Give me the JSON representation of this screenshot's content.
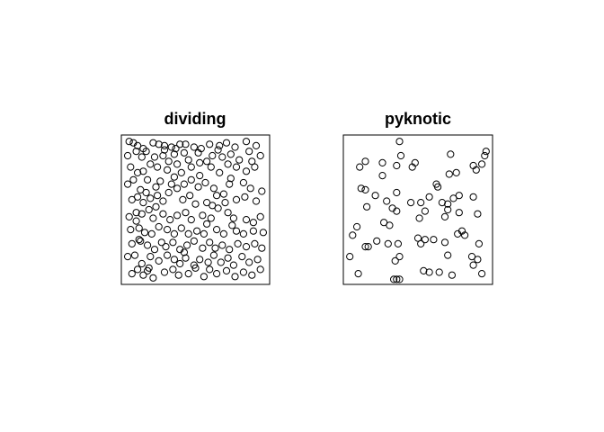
{
  "chart_data": [
    {
      "type": "scatter",
      "title": "dividing",
      "axes": "none",
      "window": [
        [
          0,
          1
        ],
        [
          0,
          1
        ]
      ],
      "marker": "open-circle",
      "points": [
        [
          0.03,
          0.98
        ],
        [
          0.06,
          0.97
        ],
        [
          0.09,
          0.95
        ],
        [
          0.13,
          0.93
        ],
        [
          0.2,
          0.97
        ],
        [
          0.24,
          0.96
        ],
        [
          0.28,
          0.95
        ],
        [
          0.33,
          0.94
        ],
        [
          0.36,
          0.93
        ],
        [
          0.39,
          0.96
        ],
        [
          0.43,
          0.96
        ],
        [
          0.49,
          0.94
        ],
        [
          0.54,
          0.93
        ],
        [
          0.6,
          0.96
        ],
        [
          0.66,
          0.92
        ],
        [
          0.72,
          0.97
        ],
        [
          0.78,
          0.94
        ],
        [
          0.86,
          0.98
        ],
        [
          0.93,
          0.95
        ],
        [
          0.02,
          0.88
        ],
        [
          0.08,
          0.91
        ],
        [
          0.12,
          0.87
        ],
        [
          0.15,
          0.91
        ],
        [
          0.18,
          0.82
        ],
        [
          0.21,
          0.87
        ],
        [
          0.27,
          0.88
        ],
        [
          0.31,
          0.84
        ],
        [
          0.35,
          0.89
        ],
        [
          0.42,
          0.9
        ],
        [
          0.45,
          0.85
        ],
        [
          0.52,
          0.9
        ],
        [
          0.58,
          0.84
        ],
        [
          0.62,
          0.88
        ],
        [
          0.69,
          0.87
        ],
        [
          0.75,
          0.89
        ],
        [
          0.81,
          0.85
        ],
        [
          0.9,
          0.84
        ],
        [
          0.96,
          0.88
        ],
        [
          0.04,
          0.8
        ],
        [
          0.09,
          0.76
        ],
        [
          0.13,
          0.77
        ],
        [
          0.23,
          0.8
        ],
        [
          0.3,
          0.78
        ],
        [
          0.37,
          0.82
        ],
        [
          0.4,
          0.76
        ],
        [
          0.47,
          0.8
        ],
        [
          0.53,
          0.74
        ],
        [
          0.61,
          0.8
        ],
        [
          0.67,
          0.76
        ],
        [
          0.73,
          0.82
        ],
        [
          0.79,
          0.8
        ],
        [
          0.86,
          0.77
        ],
        [
          0.92,
          0.8
        ],
        [
          0.02,
          0.68
        ],
        [
          0.06,
          0.71
        ],
        [
          0.11,
          0.64
        ],
        [
          0.16,
          0.71
        ],
        [
          0.22,
          0.66
        ],
        [
          0.25,
          0.7
        ],
        [
          0.33,
          0.68
        ],
        [
          0.37,
          0.65
        ],
        [
          0.42,
          0.68
        ],
        [
          0.47,
          0.71
        ],
        [
          0.52,
          0.66
        ],
        [
          0.57,
          0.69
        ],
        [
          0.63,
          0.65
        ],
        [
          0.7,
          0.61
        ],
        [
          0.74,
          0.68
        ],
        [
          0.84,
          0.69
        ],
        [
          0.89,
          0.65
        ],
        [
          0.97,
          0.63
        ],
        [
          0.05,
          0.57
        ],
        [
          0.09,
          0.59
        ],
        [
          0.13,
          0.55
        ],
        [
          0.18,
          0.58
        ],
        [
          0.23,
          0.6
        ],
        [
          0.27,
          0.56
        ],
        [
          0.31,
          0.62
        ],
        [
          0.41,
          0.57
        ],
        [
          0.46,
          0.6
        ],
        [
          0.5,
          0.54
        ],
        [
          0.58,
          0.55
        ],
        [
          0.65,
          0.6
        ],
        [
          0.71,
          0.55
        ],
        [
          0.79,
          0.57
        ],
        [
          0.85,
          0.59
        ],
        [
          0.93,
          0.56
        ],
        [
          0.03,
          0.45
        ],
        [
          0.08,
          0.48
        ],
        [
          0.12,
          0.47
        ],
        [
          0.17,
          0.5
        ],
        [
          0.2,
          0.44
        ],
        [
          0.27,
          0.47
        ],
        [
          0.32,
          0.43
        ],
        [
          0.37,
          0.46
        ],
        [
          0.43,
          0.48
        ],
        [
          0.47,
          0.43
        ],
        [
          0.55,
          0.46
        ],
        [
          0.61,
          0.44
        ],
        [
          0.66,
          0.51
        ],
        [
          0.73,
          0.48
        ],
        [
          0.77,
          0.44
        ],
        [
          0.86,
          0.43
        ],
        [
          0.91,
          0.41
        ],
        [
          0.96,
          0.45
        ],
        [
          0.04,
          0.36
        ],
        [
          0.1,
          0.37
        ],
        [
          0.14,
          0.34
        ],
        [
          0.19,
          0.33
        ],
        [
          0.24,
          0.38
        ],
        [
          0.3,
          0.36
        ],
        [
          0.35,
          0.33
        ],
        [
          0.4,
          0.37
        ],
        [
          0.45,
          0.33
        ],
        [
          0.51,
          0.35
        ],
        [
          0.56,
          0.33
        ],
        [
          0.65,
          0.36
        ],
        [
          0.7,
          0.33
        ],
        [
          0.79,
          0.35
        ],
        [
          0.84,
          0.33
        ],
        [
          0.91,
          0.35
        ],
        [
          0.98,
          0.34
        ],
        [
          0.05,
          0.26
        ],
        [
          0.1,
          0.29
        ],
        [
          0.16,
          0.25
        ],
        [
          0.21,
          0.22
        ],
        [
          0.26,
          0.27
        ],
        [
          0.29,
          0.24
        ],
        [
          0.34,
          0.27
        ],
        [
          0.39,
          0.22
        ],
        [
          0.44,
          0.25
        ],
        [
          0.49,
          0.28
        ],
        [
          0.55,
          0.23
        ],
        [
          0.6,
          0.27
        ],
        [
          0.64,
          0.23
        ],
        [
          0.69,
          0.25
        ],
        [
          0.74,
          0.22
        ],
        [
          0.8,
          0.26
        ],
        [
          0.86,
          0.24
        ],
        [
          0.92,
          0.26
        ],
        [
          0.97,
          0.23
        ],
        [
          0.02,
          0.17
        ],
        [
          0.07,
          0.18
        ],
        [
          0.12,
          0.12
        ],
        [
          0.18,
          0.17
        ],
        [
          0.24,
          0.14
        ],
        [
          0.3,
          0.18
        ],
        [
          0.35,
          0.15
        ],
        [
          0.39,
          0.12
        ],
        [
          0.43,
          0.16
        ],
        [
          0.49,
          0.11
        ],
        [
          0.53,
          0.15
        ],
        [
          0.59,
          0.13
        ],
        [
          0.63,
          0.18
        ],
        [
          0.68,
          0.13
        ],
        [
          0.73,
          0.16
        ],
        [
          0.77,
          0.11
        ],
        [
          0.83,
          0.17
        ],
        [
          0.88,
          0.13
        ],
        [
          0.94,
          0.15
        ],
        [
          0.05,
          0.05
        ],
        [
          0.09,
          0.08
        ],
        [
          0.13,
          0.04
        ],
        [
          0.16,
          0.07
        ],
        [
          0.2,
          0.02
        ],
        [
          0.28,
          0.06
        ],
        [
          0.34,
          0.08
        ],
        [
          0.38,
          0.04
        ],
        [
          0.45,
          0.05
        ],
        [
          0.5,
          0.09
        ],
        [
          0.56,
          0.03
        ],
        [
          0.6,
          0.08
        ],
        [
          0.65,
          0.05
        ],
        [
          0.72,
          0.07
        ],
        [
          0.78,
          0.03
        ],
        [
          0.84,
          0.06
        ],
        [
          0.9,
          0.04
        ],
        [
          0.96,
          0.08
        ],
        [
          0.11,
          0.28
        ],
        [
          0.22,
          0.52
        ],
        [
          0.35,
          0.73
        ],
        [
          0.53,
          0.83
        ],
        [
          0.62,
          0.53
        ],
        [
          0.75,
          0.72
        ],
        [
          0.88,
          0.91
        ],
        [
          0.17,
          0.09
        ],
        [
          0.42,
          0.2
        ],
        [
          0.58,
          0.4
        ],
        [
          0.28,
          0.92
        ],
        [
          0.76,
          0.39
        ],
        [
          0.15,
          0.62
        ],
        [
          0.67,
          0.95
        ],
        [
          0.08,
          0.42
        ]
      ]
    },
    {
      "type": "scatter",
      "title": "pyknotic",
      "axes": "none",
      "window": [
        [
          0,
          1
        ],
        [
          0,
          1
        ]
      ],
      "marker": "open-circle",
      "points": [
        [
          0.37,
          0.98
        ],
        [
          0.38,
          0.88
        ],
        [
          0.73,
          0.89
        ],
        [
          0.98,
          0.91
        ],
        [
          0.97,
          0.88
        ],
        [
          0.09,
          0.8
        ],
        [
          0.13,
          0.84
        ],
        [
          0.25,
          0.83
        ],
        [
          0.35,
          0.81
        ],
        [
          0.46,
          0.8
        ],
        [
          0.48,
          0.83
        ],
        [
          0.72,
          0.75
        ],
        [
          0.77,
          0.76
        ],
        [
          0.91,
          0.78
        ],
        [
          0.95,
          0.82
        ],
        [
          0.89,
          0.81
        ],
        [
          0.25,
          0.74
        ],
        [
          0.1,
          0.65
        ],
        [
          0.13,
          0.64
        ],
        [
          0.2,
          0.6
        ],
        [
          0.35,
          0.62
        ],
        [
          0.28,
          0.56
        ],
        [
          0.32,
          0.51
        ],
        [
          0.45,
          0.55
        ],
        [
          0.52,
          0.55
        ],
        [
          0.58,
          0.59
        ],
        [
          0.63,
          0.68
        ],
        [
          0.64,
          0.66
        ],
        [
          0.67,
          0.55
        ],
        [
          0.71,
          0.54
        ],
        [
          0.75,
          0.58
        ],
        [
          0.79,
          0.6
        ],
        [
          0.89,
          0.59
        ],
        [
          0.14,
          0.52
        ],
        [
          0.07,
          0.38
        ],
        [
          0.04,
          0.32
        ],
        [
          0.26,
          0.41
        ],
        [
          0.3,
          0.39
        ],
        [
          0.35,
          0.49
        ],
        [
          0.51,
          0.44
        ],
        [
          0.55,
          0.49
        ],
        [
          0.69,
          0.45
        ],
        [
          0.71,
          0.5
        ],
        [
          0.79,
          0.48
        ],
        [
          0.92,
          0.47
        ],
        [
          0.21,
          0.28
        ],
        [
          0.29,
          0.26
        ],
        [
          0.36,
          0.26
        ],
        [
          0.5,
          0.3
        ],
        [
          0.52,
          0.26
        ],
        [
          0.55,
          0.29
        ],
        [
          0.61,
          0.29
        ],
        [
          0.69,
          0.27
        ],
        [
          0.78,
          0.33
        ],
        [
          0.81,
          0.35
        ],
        [
          0.83,
          0.32
        ],
        [
          0.93,
          0.26
        ],
        [
          0.13,
          0.24
        ],
        [
          0.15,
          0.24
        ],
        [
          0.02,
          0.17
        ],
        [
          0.34,
          0.14
        ],
        [
          0.37,
          0.17
        ],
        [
          0.71,
          0.18
        ],
        [
          0.88,
          0.17
        ],
        [
          0.92,
          0.15
        ],
        [
          0.89,
          0.11
        ],
        [
          0.08,
          0.05
        ],
        [
          0.54,
          0.07
        ],
        [
          0.58,
          0.06
        ],
        [
          0.65,
          0.06
        ],
        [
          0.74,
          0.04
        ],
        [
          0.95,
          0.05
        ],
        [
          0.33,
          0.01
        ],
        [
          0.35,
          0.01
        ],
        [
          0.37,
          0.01
        ]
      ]
    }
  ]
}
